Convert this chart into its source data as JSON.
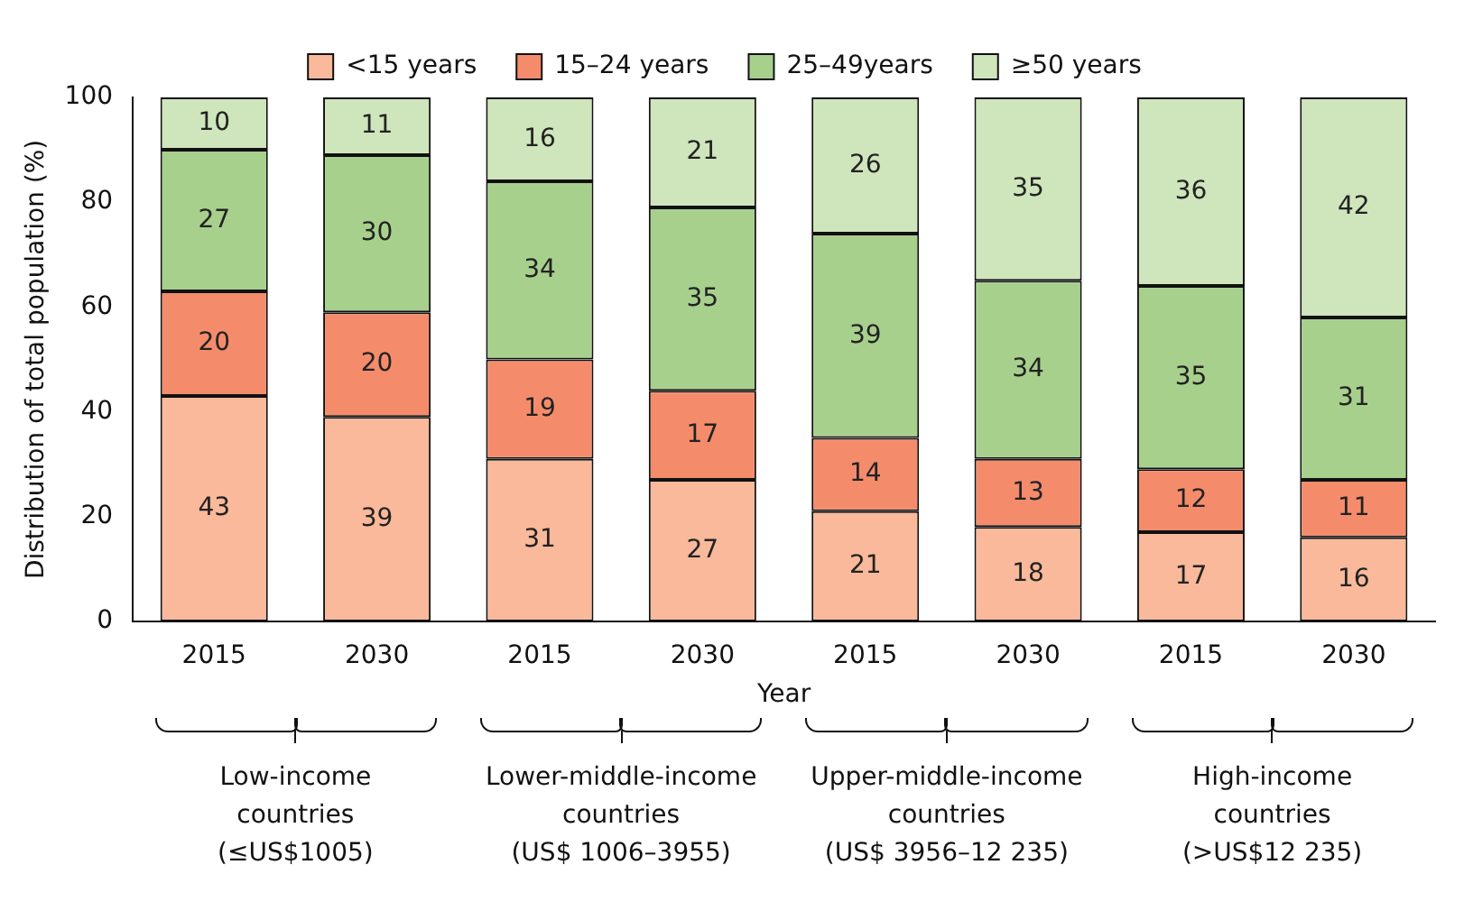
{
  "chart_data": {
    "type": "bar",
    "stacked": true,
    "xlabel": "Year",
    "ylabel": "Distribution of total population (%)",
    "categories": [
      "2015",
      "2030",
      "2015",
      "2030",
      "2015",
      "2030",
      "2015",
      "2030"
    ],
    "series": [
      {
        "name": "<15 years",
        "color": "#f9b99a",
        "values": [
          43,
          39,
          31,
          27,
          21,
          18,
          17,
          16
        ]
      },
      {
        "name": "15–24 years",
        "color": "#f48c6c",
        "values": [
          20,
          20,
          19,
          17,
          14,
          13,
          12,
          11
        ]
      },
      {
        "name": "25–49years",
        "color": "#a8d08d",
        "values": [
          27,
          30,
          34,
          35,
          39,
          34,
          35,
          31
        ]
      },
      {
        "name": "≥50 years",
        "color": "#cfe5bc",
        "values": [
          10,
          11,
          16,
          21,
          26,
          35,
          36,
          42
        ]
      }
    ],
    "ylim": [
      0,
      100
    ],
    "yticks": [
      0,
      20,
      40,
      60,
      80,
      100
    ],
    "grid": false,
    "legend": "top",
    "data_labels": true,
    "annotations": [
      "Low-income\ncountries\n(≤US$1005)",
      "Lower-middle-income\ncountries\n(US$ 1006–3955)",
      "Upper-middle-income\ncountries\n(US$ 3956–12 235)",
      "High-income\ncountries\n(>US$12 235)"
    ]
  }
}
